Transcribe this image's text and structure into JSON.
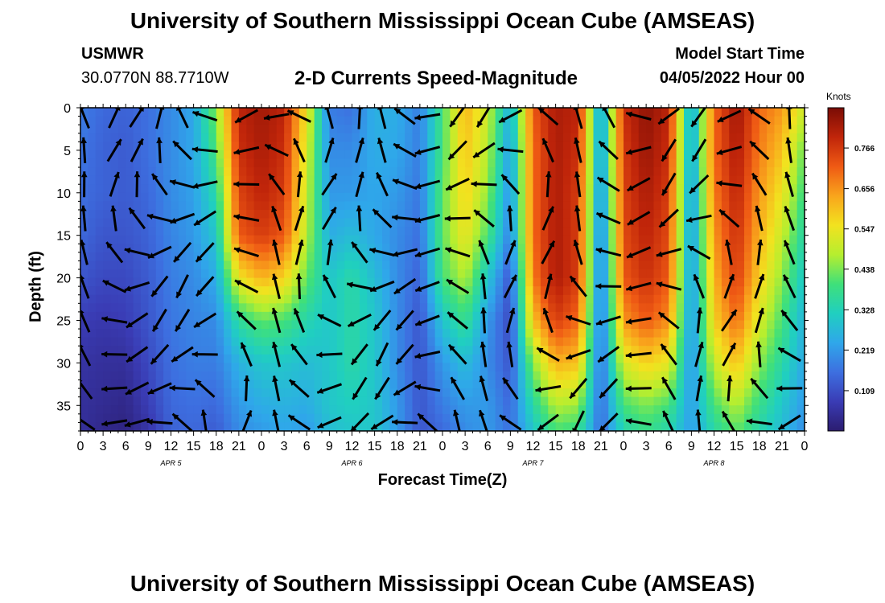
{
  "header": {
    "title": "University of Southern Mississippi Ocean Cube (AMSEAS)",
    "station": "USMWR",
    "coords": "30.0770N  88.7710W",
    "chart_name": "2-D Currents Speed-Magnitude",
    "model_start_label": "Model Start Time",
    "model_start_value": "04/05/2022 Hour 00"
  },
  "footer": {
    "title": "University of Southern Mississippi Ocean Cube (AMSEAS)"
  },
  "colors": {
    "scale": [
      "#2b1c6f",
      "#3a3cb5",
      "#3d6fe0",
      "#2fa7ea",
      "#20cfc0",
      "#3fe07a",
      "#b6ee2f",
      "#f2e21f",
      "#f9a51c",
      "#ef5a14",
      "#c0250a",
      "#7a0c05"
    ],
    "arrow": "#000000",
    "frame": "#000000"
  },
  "chart_data": {
    "type": "heatmap",
    "title": "2-D Currents Speed-Magnitude",
    "xlabel": "Forecast Time(Z)",
    "ylabel": "Depth (ft)",
    "x_tick_labels": [
      "0",
      "3",
      "6",
      "9",
      "12",
      "15",
      "18",
      "21",
      "0",
      "3",
      "6",
      "9",
      "12",
      "15",
      "18",
      "21",
      "0",
      "3",
      "6",
      "9",
      "12",
      "15",
      "18",
      "21",
      "0",
      "3",
      "6",
      "9",
      "12",
      "15",
      "18",
      "21",
      "0"
    ],
    "x_hours_range": [
      0,
      96
    ],
    "day_labels": [
      {
        "label": "APR 5",
        "center_hour": 12
      },
      {
        "label": "APR 6",
        "center_hour": 36
      },
      {
        "label": "APR 7",
        "center_hour": 60
      },
      {
        "label": "APR 8",
        "center_hour": 84
      }
    ],
    "y_ticks": [
      0,
      5,
      10,
      15,
      20,
      25,
      30,
      35
    ],
    "y_range": [
      0,
      38
    ],
    "colorbar": {
      "unit": "Knots",
      "range": [
        0,
        0.875
      ],
      "ticks": [
        "0.766",
        "0.656",
        "0.547",
        "0.438",
        "0.328",
        "0.219",
        "0.109"
      ]
    },
    "speed_grid": {
      "depths": [
        0,
        5,
        10,
        15,
        20,
        25,
        30,
        35,
        38
      ],
      "hours": [
        0,
        3,
        6,
        9,
        12,
        15,
        18,
        21,
        24,
        27,
        30,
        33,
        36,
        39,
        42,
        45,
        48,
        51,
        54,
        57,
        60,
        63,
        66,
        69,
        72,
        75,
        78,
        81,
        84,
        87,
        90,
        93,
        96
      ],
      "values": [
        [
          0.18,
          0.15,
          0.14,
          0.16,
          0.2,
          0.24,
          0.45,
          0.8,
          0.83,
          0.8,
          0.55,
          0.18,
          0.16,
          0.26,
          0.25,
          0.18,
          0.4,
          0.62,
          0.5,
          0.25,
          0.72,
          0.82,
          0.8,
          0.2,
          0.78,
          0.85,
          0.8,
          0.22,
          0.7,
          0.84,
          0.7,
          0.65,
          0.5
        ],
        [
          0.17,
          0.14,
          0.13,
          0.16,
          0.2,
          0.24,
          0.4,
          0.78,
          0.82,
          0.78,
          0.52,
          0.2,
          0.2,
          0.25,
          0.24,
          0.18,
          0.4,
          0.6,
          0.48,
          0.22,
          0.7,
          0.82,
          0.78,
          0.2,
          0.76,
          0.84,
          0.78,
          0.22,
          0.7,
          0.82,
          0.68,
          0.6,
          0.42
        ],
        [
          0.16,
          0.14,
          0.13,
          0.15,
          0.2,
          0.23,
          0.35,
          0.75,
          0.8,
          0.76,
          0.5,
          0.22,
          0.22,
          0.24,
          0.22,
          0.17,
          0.42,
          0.58,
          0.45,
          0.2,
          0.7,
          0.82,
          0.76,
          0.18,
          0.75,
          0.82,
          0.76,
          0.2,
          0.68,
          0.8,
          0.65,
          0.55,
          0.38
        ],
        [
          0.15,
          0.12,
          0.12,
          0.14,
          0.19,
          0.22,
          0.3,
          0.72,
          0.76,
          0.72,
          0.48,
          0.25,
          0.28,
          0.24,
          0.2,
          0.16,
          0.42,
          0.55,
          0.4,
          0.18,
          0.7,
          0.82,
          0.76,
          0.16,
          0.74,
          0.8,
          0.74,
          0.2,
          0.65,
          0.78,
          0.62,
          0.5,
          0.34
        ],
        [
          0.12,
          0.1,
          0.1,
          0.13,
          0.18,
          0.2,
          0.25,
          0.55,
          0.62,
          0.58,
          0.42,
          0.3,
          0.35,
          0.28,
          0.2,
          0.14,
          0.4,
          0.48,
          0.3,
          0.12,
          0.68,
          0.82,
          0.76,
          0.15,
          0.72,
          0.78,
          0.72,
          0.2,
          0.62,
          0.76,
          0.58,
          0.45,
          0.3
        ],
        [
          0.08,
          0.07,
          0.08,
          0.12,
          0.17,
          0.19,
          0.2,
          0.36,
          0.42,
          0.4,
          0.34,
          0.3,
          0.35,
          0.3,
          0.2,
          0.12,
          0.3,
          0.38,
          0.22,
          0.1,
          0.6,
          0.76,
          0.7,
          0.15,
          0.65,
          0.72,
          0.66,
          0.2,
          0.58,
          0.7,
          0.52,
          0.4,
          0.26
        ],
        [
          0.06,
          0.05,
          0.05,
          0.1,
          0.16,
          0.18,
          0.18,
          0.26,
          0.3,
          0.3,
          0.28,
          0.3,
          0.35,
          0.3,
          0.2,
          0.12,
          0.22,
          0.28,
          0.2,
          0.12,
          0.45,
          0.62,
          0.6,
          0.15,
          0.52,
          0.58,
          0.54,
          0.2,
          0.5,
          0.6,
          0.45,
          0.35,
          0.24
        ],
        [
          0.05,
          0.04,
          0.03,
          0.08,
          0.15,
          0.16,
          0.15,
          0.22,
          0.25,
          0.26,
          0.25,
          0.3,
          0.32,
          0.3,
          0.22,
          0.12,
          0.18,
          0.22,
          0.22,
          0.15,
          0.35,
          0.48,
          0.46,
          0.15,
          0.4,
          0.44,
          0.4,
          0.22,
          0.4,
          0.48,
          0.38,
          0.3,
          0.22
        ],
        [
          0.05,
          0.03,
          0.02,
          0.06,
          0.14,
          0.15,
          0.13,
          0.2,
          0.22,
          0.24,
          0.22,
          0.28,
          0.3,
          0.3,
          0.22,
          0.12,
          0.15,
          0.2,
          0.22,
          0.16,
          0.3,
          0.4,
          0.38,
          0.15,
          0.34,
          0.38,
          0.34,
          0.22,
          0.35,
          0.42,
          0.34,
          0.28,
          0.2
        ]
      ]
    },
    "arrows": {
      "depths": [
        1,
        5,
        9,
        13,
        17,
        21,
        25,
        29,
        33,
        37
      ],
      "hours": [
        0.5,
        4.5,
        7.5,
        10.5,
        13.5,
        16.5,
        22,
        26,
        29,
        33,
        37,
        40,
        43,
        46,
        50,
        53.5,
        57,
        62,
        66,
        70,
        74,
        78,
        82,
        86,
        90,
        94
      ]
    }
  }
}
